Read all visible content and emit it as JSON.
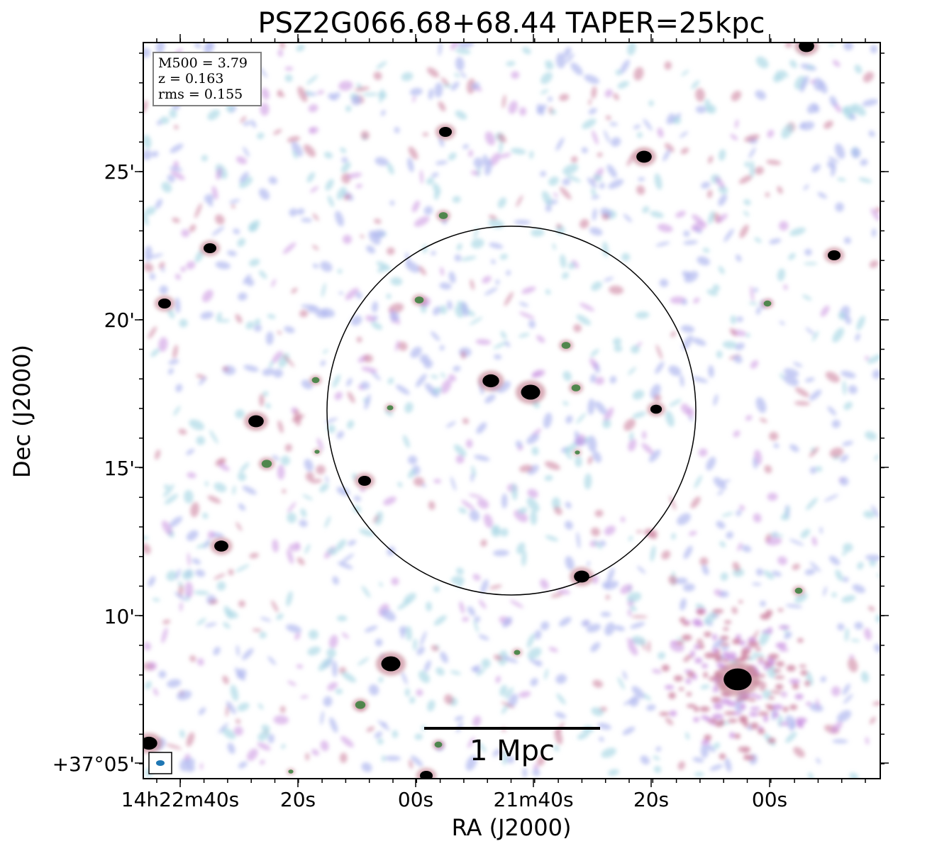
{
  "title": "PSZ2G066.68+68.44 TAPER=25kpc",
  "axes": {
    "xlabel": "RA (J2000)",
    "ylabel": "Dec (J2000)",
    "x_ticks": [
      "14h22m40s",
      "20s",
      "00s",
      "21m40s",
      "20s",
      "00s"
    ],
    "y_ticks": [
      "25'",
      "20'",
      "15'",
      "10'",
      "+37°05'"
    ]
  },
  "info_box": {
    "lines": [
      "M500 = 3.79",
      "z = 0.163",
      "rms = 0.155"
    ]
  },
  "scale_bar": {
    "label": "1 Mpc"
  },
  "colors": {
    "noise_light": "#add8e6",
    "noise_mid": "#b0b8f0",
    "noise_purple": "#c890e0",
    "noise_pink": "#c87898",
    "source_core": "#000000",
    "source_ring": "#2e7d32",
    "beam": "#1f77b4",
    "circle": "#000000"
  }
}
